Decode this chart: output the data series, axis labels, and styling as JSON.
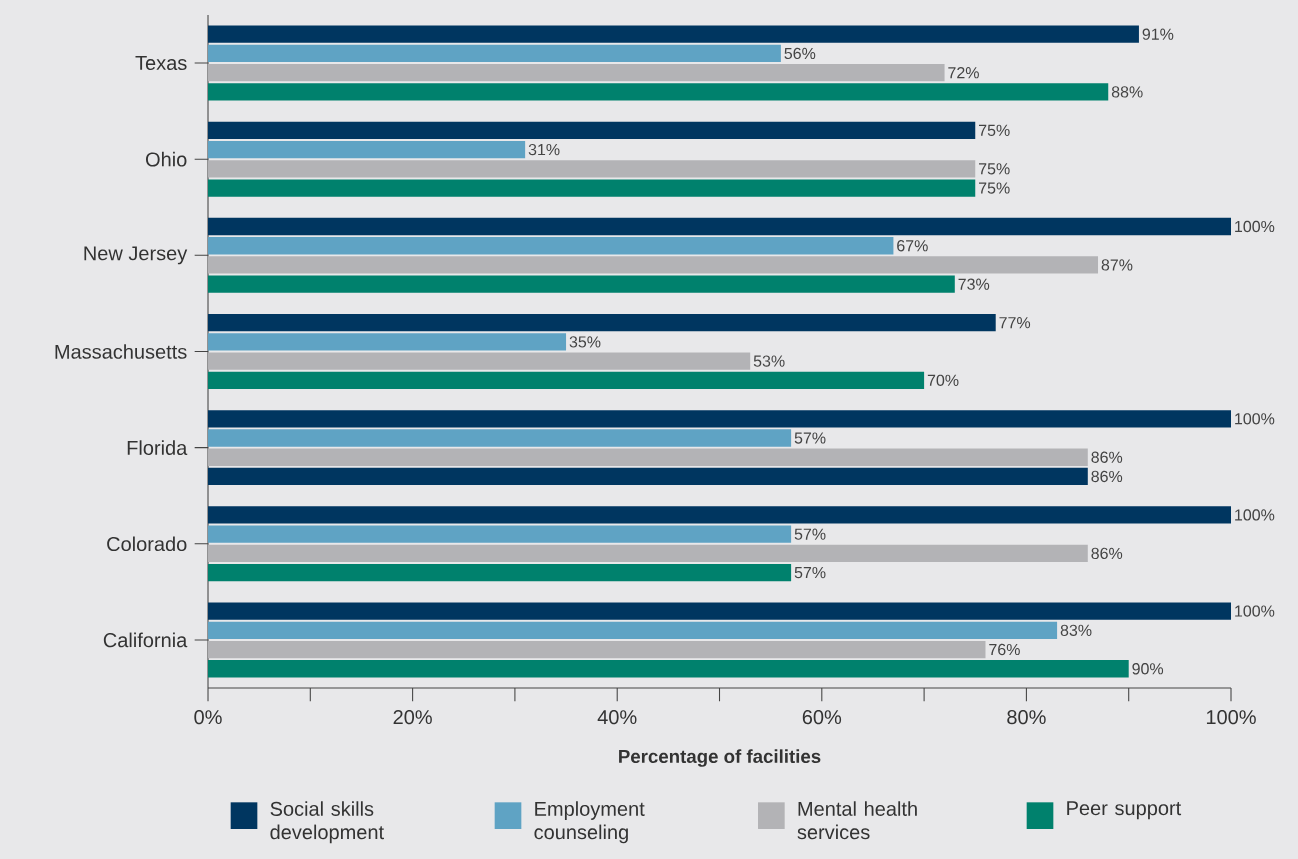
{
  "chart_data": {
    "type": "bar",
    "orientation": "horizontal",
    "xlabel": "Percentage of facilities",
    "categories": [
      "Texas",
      "Ohio",
      "New Jersey",
      "Massachusetts",
      "Florida",
      "Colorado",
      "California"
    ],
    "series": [
      {
        "name": "Social skills development",
        "color": "#003660",
        "values": [
          91,
          75,
          100,
          77,
          100,
          100,
          100
        ],
        "value_labels": [
          "91%",
          "75%",
          "100%",
          "77%",
          "100%",
          "100%",
          "100%"
        ]
      },
      {
        "name": "Employment counseling",
        "color": "#5fa3c4",
        "values": [
          56,
          31,
          67,
          35,
          57,
          57,
          83
        ],
        "value_labels": [
          "56%",
          "31%",
          "67%",
          "35%",
          "57%",
          "57%",
          "83%"
        ]
      },
      {
        "name": "Mental health services",
        "color": "#b3b3b6",
        "values": [
          72,
          75,
          87,
          53,
          86,
          86,
          76
        ],
        "value_labels": [
          "72%",
          "75%",
          "87%",
          "53%",
          "86%",
          "86%",
          "76%"
        ]
      },
      {
        "name": "Peer support",
        "color": "#00816d",
        "colors": [
          "#00816d",
          "#00816d",
          "#00816d",
          "#00816d",
          "#003660",
          "#00816d",
          "#00816d"
        ],
        "values": [
          88,
          75,
          73,
          70,
          86,
          57,
          90
        ],
        "value_labels": [
          "88%",
          "75%",
          "73%",
          "70%",
          "86%",
          "57%",
          "90%"
        ]
      }
    ],
    "xlim": [
      0,
      100
    ],
    "xticks": [
      {
        "value": 0,
        "label": "0%"
      },
      {
        "value": 10,
        "label": null
      },
      {
        "value": 20,
        "label": "20%"
      },
      {
        "value": 30,
        "label": null
      },
      {
        "value": 40,
        "label": "40%"
      },
      {
        "value": 50,
        "label": null
      },
      {
        "value": 60,
        "label": "60%"
      },
      {
        "value": 70,
        "label": null
      },
      {
        "value": 80,
        "label": "80%"
      },
      {
        "value": 90,
        "label": null
      },
      {
        "value": 100,
        "label": "100%"
      }
    ],
    "legend": "bottom"
  }
}
